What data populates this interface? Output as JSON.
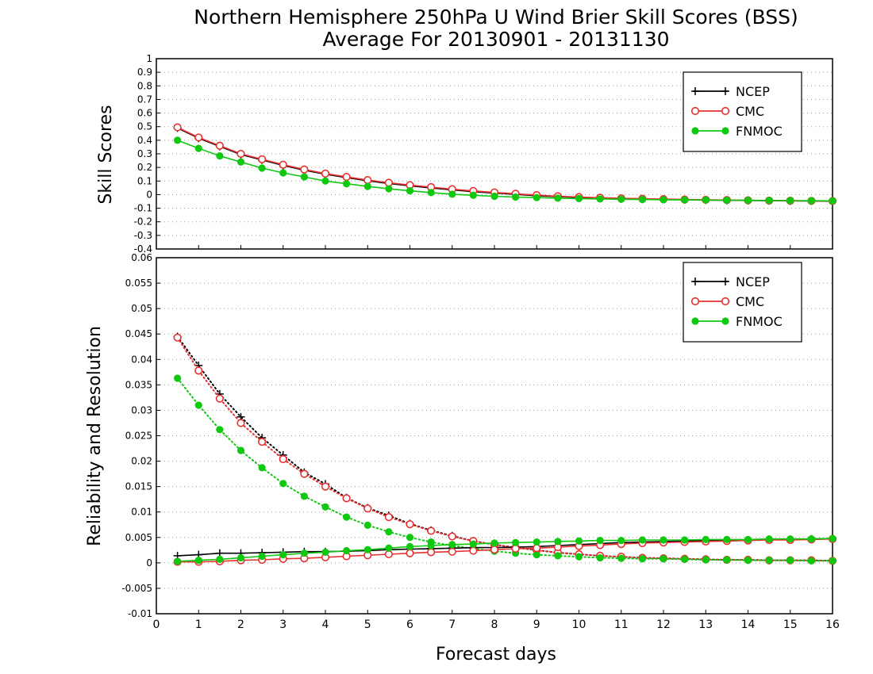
{
  "title": {
    "line1": "Northern Hemisphere 250hPa U Wind Brier Skill Scores (BSS)",
    "line2": "Average For 20130901 - 20131130"
  },
  "xlabel": "Forecast days",
  "colors": {
    "NCEP": "#000000",
    "CMC": "#e83030",
    "FNMOC": "#10c810"
  },
  "chart_data": [
    {
      "type": "line",
      "ylabel": "Skill Scores",
      "xlabel": "",
      "xlim": [
        0,
        16
      ],
      "ylim": [
        -0.4,
        1
      ],
      "grid": true,
      "legend_position": "top-right",
      "legend": [
        "NCEP",
        "CMC",
        "FNMOC"
      ],
      "x_ticks": [
        "0",
        "1",
        "2",
        "3",
        "4",
        "5",
        "6",
        "7",
        "8",
        "9",
        "10",
        "11",
        "12",
        "13",
        "14",
        "15",
        "16"
      ],
      "y_ticks": [
        "1",
        "0.9",
        "0.8",
        "0.7",
        "0.6",
        "0.5",
        "0.4",
        "0.3",
        "0.2",
        "0.1",
        "0",
        "-0.1",
        "-0.2",
        "-0.3",
        "-0.4"
      ],
      "x": [
        0.5,
        1,
        1.5,
        2,
        2.5,
        3,
        3.5,
        4,
        4.5,
        5,
        5.5,
        6,
        6.5,
        7,
        7.5,
        8,
        8.5,
        9,
        9.5,
        10,
        10.5,
        11,
        11.5,
        12,
        12.5,
        13,
        13.5,
        14,
        14.5,
        15,
        15.5,
        16
      ],
      "series": [
        {
          "name": "NCEP",
          "marker": "plus",
          "style": "solid",
          "values": [
            0.49,
            0.415,
            0.355,
            0.295,
            0.255,
            0.215,
            0.18,
            0.15,
            0.125,
            0.102,
            0.082,
            0.065,
            0.05,
            0.035,
            0.022,
            0.012,
            0.002,
            -0.008,
            -0.015,
            -0.02,
            -0.025,
            -0.03,
            -0.033,
            -0.035,
            -0.038,
            -0.04,
            -0.042,
            -0.043,
            -0.045,
            -0.046,
            -0.047,
            -0.048
          ]
        },
        {
          "name": "CMC",
          "marker": "open-circle",
          "style": "solid",
          "values": [
            0.495,
            0.42,
            0.36,
            0.3,
            0.26,
            0.22,
            0.185,
            0.155,
            0.13,
            0.107,
            0.087,
            0.07,
            0.055,
            0.04,
            0.027,
            0.016,
            0.006,
            -0.004,
            -0.012,
            -0.018,
            -0.023,
            -0.027,
            -0.03,
            -0.033,
            -0.036,
            -0.038,
            -0.04,
            -0.042,
            -0.044,
            -0.045,
            -0.046,
            -0.047
          ]
        },
        {
          "name": "FNMOC",
          "marker": "filled-circle",
          "style": "solid",
          "values": [
            0.4,
            0.34,
            0.285,
            0.24,
            0.195,
            0.16,
            0.13,
            0.1,
            0.08,
            0.06,
            0.043,
            0.028,
            0.015,
            0.003,
            -0.005,
            -0.012,
            -0.018,
            -0.022,
            -0.026,
            -0.029,
            -0.032,
            -0.034,
            -0.036,
            -0.038,
            -0.039,
            -0.04,
            -0.041,
            -0.042,
            -0.043,
            -0.044,
            -0.045,
            -0.046
          ]
        }
      ]
    },
    {
      "type": "line",
      "ylabel": "Reliability and Resolution",
      "xlabel": "Forecast days",
      "xlim": [
        0,
        16
      ],
      "ylim": [
        -0.01,
        0.06
      ],
      "grid": true,
      "legend_position": "top-right",
      "legend": [
        "NCEP",
        "CMC",
        "FNMOC"
      ],
      "x_ticks": [
        "0",
        "1",
        "2",
        "3",
        "4",
        "5",
        "6",
        "7",
        "8",
        "9",
        "10",
        "11",
        "12",
        "13",
        "14",
        "15",
        "16"
      ],
      "y_ticks": [
        "0.06",
        "0.055",
        "0.05",
        "0.045",
        "0.04",
        "0.035",
        "0.03",
        "0.025",
        "0.02",
        "0.015",
        "0.01",
        "0.005",
        "0",
        "-0.005",
        "-0.01"
      ],
      "x": [
        0.5,
        1,
        1.5,
        2,
        2.5,
        3,
        3.5,
        4,
        4.5,
        5,
        5.5,
        6,
        6.5,
        7,
        7.5,
        8,
        8.5,
        9,
        9.5,
        10,
        10.5,
        11,
        11.5,
        12,
        12.5,
        13,
        13.5,
        14,
        14.5,
        15,
        15.5,
        16
      ],
      "series": [
        {
          "name": "NCEP",
          "component": "resolution",
          "marker": "plus",
          "style": "dotted",
          "values": [
            0.0445,
            0.0388,
            0.0332,
            0.0287,
            0.0246,
            0.0212,
            0.0178,
            0.0155,
            0.0128,
            0.0108,
            0.0093,
            0.0077,
            0.0064,
            0.0053,
            0.0043,
            0.0036,
            0.003,
            0.0025,
            0.002,
            0.0017,
            0.0014,
            0.0012,
            0.001,
            0.0009,
            0.0008,
            0.0007,
            0.0006,
            0.0006,
            0.0005,
            0.0005,
            0.0005,
            0.0004
          ]
        },
        {
          "name": "CMC",
          "component": "resolution",
          "marker": "open-circle",
          "style": "dotted",
          "values": [
            0.0443,
            0.0378,
            0.0323,
            0.0275,
            0.0238,
            0.0204,
            0.0175,
            0.015,
            0.0127,
            0.0107,
            0.009,
            0.0076,
            0.0063,
            0.0052,
            0.0043,
            0.0036,
            0.003,
            0.0025,
            0.002,
            0.0017,
            0.0014,
            0.0012,
            0.001,
            0.0009,
            0.0008,
            0.0007,
            0.0006,
            0.0006,
            0.0005,
            0.0005,
            0.0005,
            0.0004
          ]
        },
        {
          "name": "FNMOC",
          "component": "resolution",
          "marker": "filled-circle",
          "style": "dotted",
          "values": [
            0.0363,
            0.031,
            0.0262,
            0.0221,
            0.0187,
            0.0156,
            0.0131,
            0.011,
            0.009,
            0.0074,
            0.0061,
            0.005,
            0.0041,
            0.0034,
            0.0028,
            0.0023,
            0.0019,
            0.0016,
            0.0014,
            0.0012,
            0.001,
            0.0009,
            0.0008,
            0.0008,
            0.0007,
            0.0006,
            0.0006,
            0.0005,
            0.0005,
            0.0005,
            0.0004,
            0.0004
          ]
        },
        {
          "name": "NCEP",
          "component": "reliability",
          "marker": "plus",
          "style": "solid",
          "values": [
            0.0014,
            0.0016,
            0.0019,
            0.0019,
            0.002,
            0.0021,
            0.0022,
            0.0022,
            0.0023,
            0.0024,
            0.0026,
            0.0027,
            0.0028,
            0.0029,
            0.003,
            0.003,
            0.0031,
            0.0032,
            0.0034,
            0.0036,
            0.0038,
            0.004,
            0.0041,
            0.0042,
            0.0043,
            0.0044,
            0.0045,
            0.0045,
            0.0046,
            0.0046,
            0.0047,
            0.0048
          ]
        },
        {
          "name": "CMC",
          "component": "reliability",
          "marker": "open-circle",
          "style": "solid",
          "values": [
            0.0002,
            0.0002,
            0.0003,
            0.0005,
            0.0006,
            0.0008,
            0.0009,
            0.0011,
            0.0013,
            0.0015,
            0.0017,
            0.0019,
            0.0021,
            0.0022,
            0.0024,
            0.0026,
            0.0028,
            0.0029,
            0.0031,
            0.0033,
            0.0035,
            0.0037,
            0.0039,
            0.004,
            0.0041,
            0.0042,
            0.0043,
            0.0044,
            0.0045,
            0.0045,
            0.0046,
            0.0047
          ]
        },
        {
          "name": "FNMOC",
          "component": "reliability",
          "marker": "filled-circle",
          "style": "solid",
          "values": [
            0.0003,
            0.0005,
            0.0007,
            0.001,
            0.0013,
            0.0016,
            0.0019,
            0.0021,
            0.0024,
            0.0026,
            0.0029,
            0.0032,
            0.0034,
            0.0036,
            0.0037,
            0.0039,
            0.004,
            0.0041,
            0.0042,
            0.0043,
            0.0044,
            0.0044,
            0.0045,
            0.0045,
            0.0045,
            0.0046,
            0.0046,
            0.0046,
            0.0047,
            0.0047,
            0.0047,
            0.0048
          ]
        }
      ]
    }
  ]
}
